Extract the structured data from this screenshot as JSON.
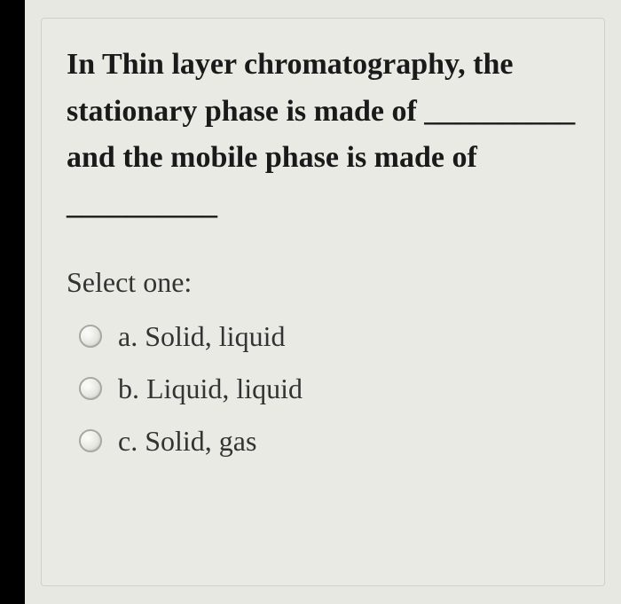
{
  "question": {
    "text": "In Thin layer chromatography, the stationary phase is made of __________ and the mobile phase is made of __________"
  },
  "prompt": "Select one:",
  "options": [
    {
      "key": "a",
      "label": "a. Solid, liquid"
    },
    {
      "key": "b",
      "label": "b. Liquid, liquid"
    },
    {
      "key": "c",
      "label": "c.  Solid, gas"
    }
  ],
  "colors": {
    "background": "#e8e8e3",
    "card_bg": "#eaeae5",
    "card_border": "#d0d0c8",
    "text_dark": "#1a1a1a",
    "text_body": "#333",
    "radio_border": "#a8a8a0"
  },
  "typography": {
    "question_fontsize": 34,
    "question_weight": "bold",
    "option_fontsize": 32,
    "family": "Georgia, serif"
  }
}
